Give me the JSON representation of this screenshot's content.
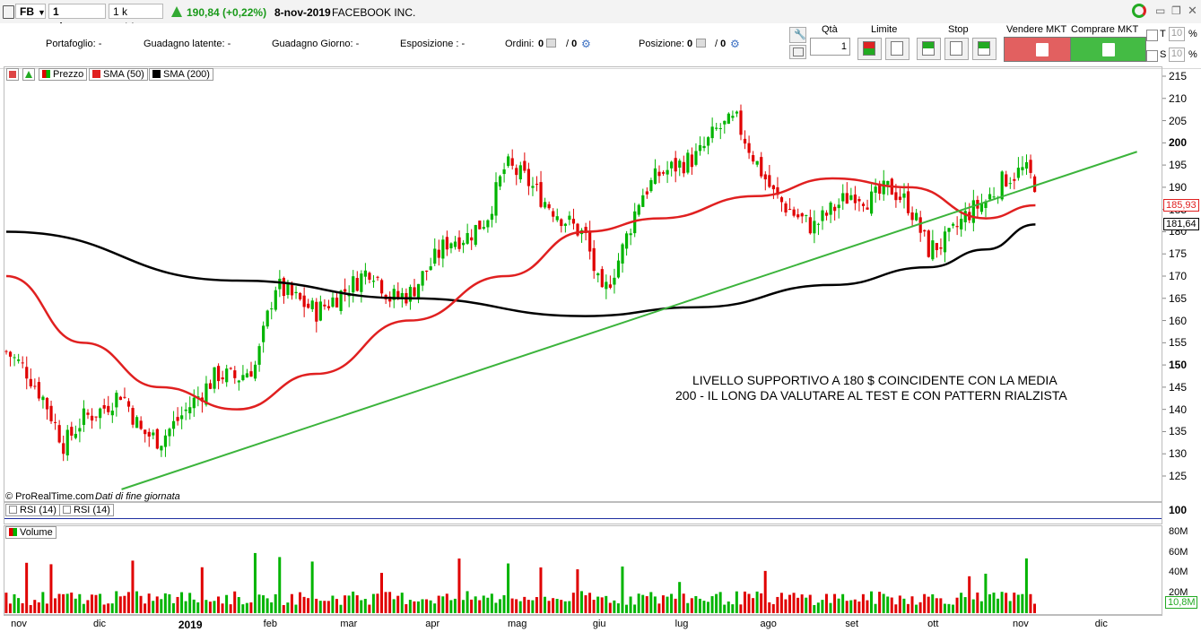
{
  "toolbar": {
    "symbol": "FB",
    "timeframe": "1 giorno",
    "units": "1 k unità",
    "price_change": "190,84 (+0,22%)",
    "date": "8-nov-2019",
    "company": "FACEBOOK INC."
  },
  "infobar": {
    "portafoglio": "Portafoglio: -",
    "guadagno_latente": "Guadagno latente: -",
    "guadagno_giorno": "Guadagno Giorno: -",
    "esposizione": "Esposizione : -",
    "ordini_label": "Ordini:",
    "ordini_val": "0",
    "ordini_val2": "0",
    "posizione_label": "Posizione:",
    "posizione_val": "0",
    "posizione_val2": "0",
    "qta_label": "Qtà",
    "qta_value": "1",
    "limite_label": "Limite",
    "stop_label": "Stop",
    "vendere_label": "Vendere MKT",
    "comprare_label": "Comprare MKT",
    "t_label": "T",
    "s_label": "S",
    "t_value": "10",
    "s_value": "10",
    "percent": "%"
  },
  "legend": {
    "prezzo": "Prezzo",
    "sma50": "SMA (50)",
    "sma200": "SMA (200)"
  },
  "colors": {
    "up": "#00b400",
    "down": "#e00000",
    "sma50": "#e02020",
    "sma200": "#000000",
    "trendline": "#3cb43c",
    "sell": "#e06060",
    "buy": "#44bb44"
  },
  "annotation": {
    "line1": "LIVELLO SUPPORTIVO A 180 $ COINCIDENTE CON LA MEDIA",
    "line2": "200 - IL LONG DA VALUTARE AL TEST E CON PATTERN RIALZISTA"
  },
  "credit": {
    "source": "© ProRealTime.com",
    "note": "Dati di fine giornata"
  },
  "rsi_panel": {
    "label1": "RSI (14)",
    "label2": "RSI (14)",
    "axis": "100"
  },
  "volume_panel": {
    "label": "Volume",
    "ticks": [
      "80M",
      "60M",
      "40M",
      "20M"
    ],
    "current": "10,8M"
  },
  "price_axis": {
    "ticks": [
      "215",
      "210",
      "205",
      "200",
      "195",
      "190",
      "185",
      "180",
      "175",
      "170",
      "165",
      "160",
      "155",
      "150",
      "145",
      "140",
      "135",
      "130",
      "125"
    ],
    "bold_ticks": [
      "200",
      "150"
    ],
    "sma50_label": "185,93",
    "sma200_label": "181,64"
  },
  "x_axis": {
    "labels": [
      "nov",
      "dic",
      "2019",
      "feb",
      "mar",
      "apr",
      "mag",
      "giu",
      "lug",
      "ago",
      "set",
      "ott",
      "nov",
      "dic"
    ]
  },
  "chart_data": {
    "type": "candlestick",
    "title": "FACEBOOK INC.",
    "ylim": [
      120,
      217
    ],
    "y_ticks": [
      215,
      210,
      205,
      200,
      195,
      190,
      185,
      180,
      175,
      170,
      165,
      160,
      155,
      150,
      145,
      140,
      135,
      130,
      125
    ],
    "x_months": [
      "nov",
      "dic",
      "2019",
      "feb",
      "mar",
      "apr",
      "mag",
      "giu",
      "lug",
      "ago",
      "set",
      "ott",
      "nov",
      "dic"
    ],
    "close_path": [
      [
        "2018-10-29",
        153
      ],
      [
        "2018-11-05",
        149
      ],
      [
        "2018-11-12",
        142
      ],
      [
        "2018-11-19",
        132
      ],
      [
        "2018-11-26",
        138
      ],
      [
        "2018-12-03",
        140
      ],
      [
        "2018-12-10",
        144
      ],
      [
        "2018-12-17",
        135
      ],
      [
        "2018-12-24",
        133
      ],
      [
        "2019-01-07",
        143
      ],
      [
        "2019-01-14",
        148
      ],
      [
        "2019-01-21",
        147
      ],
      [
        "2019-01-28",
        150
      ],
      [
        "2019-02-04",
        168
      ],
      [
        "2019-02-11",
        165
      ],
      [
        "2019-02-19",
        162
      ],
      [
        "2019-03-04",
        168
      ],
      [
        "2019-03-11",
        172
      ],
      [
        "2019-03-18",
        165
      ],
      [
        "2019-03-25",
        166
      ],
      [
        "2019-04-08",
        178
      ],
      [
        "2019-04-15",
        179
      ],
      [
        "2019-04-22",
        183
      ],
      [
        "2019-04-29",
        195
      ],
      [
        "2019-05-06",
        192
      ],
      [
        "2019-05-13",
        187
      ],
      [
        "2019-05-20",
        183
      ],
      [
        "2019-05-28",
        179
      ],
      [
        "2019-06-03",
        165
      ],
      [
        "2019-06-10",
        175
      ],
      [
        "2019-06-17",
        188
      ],
      [
        "2019-06-24",
        193
      ],
      [
        "2019-07-08",
        197
      ],
      [
        "2019-07-15",
        203
      ],
      [
        "2019-07-22",
        205
      ],
      [
        "2019-07-29",
        196
      ],
      [
        "2019-08-05",
        188
      ],
      [
        "2019-08-12",
        184
      ],
      [
        "2019-08-19",
        181
      ],
      [
        "2019-08-26",
        185
      ],
      [
        "2019-09-03",
        189
      ],
      [
        "2019-09-09",
        187
      ],
      [
        "2019-09-16",
        190
      ],
      [
        "2019-09-23",
        186
      ],
      [
        "2019-09-30",
        176
      ],
      [
        "2019-10-07",
        178
      ],
      [
        "2019-10-14",
        184
      ],
      [
        "2019-10-21",
        187
      ],
      [
        "2019-10-28",
        192
      ],
      [
        "2019-11-04",
        194
      ],
      [
        "2019-11-08",
        190.84
      ]
    ],
    "sma50_path": [
      [
        "2018-10-29",
        170
      ],
      [
        "2018-11-26",
        155
      ],
      [
        "2018-12-24",
        145
      ],
      [
        "2019-01-21",
        140
      ],
      [
        "2019-02-19",
        148
      ],
      [
        "2019-03-25",
        160
      ],
      [
        "2019-04-29",
        170
      ],
      [
        "2019-05-28",
        180
      ],
      [
        "2019-06-24",
        183
      ],
      [
        "2019-07-29",
        188
      ],
      [
        "2019-08-26",
        192
      ],
      [
        "2019-09-23",
        190
      ],
      [
        "2019-10-21",
        183
      ],
      [
        "2019-11-08",
        185.93
      ]
    ],
    "sma200_path": [
      [
        "2018-10-29",
        180
      ],
      [
        "2019-01-21",
        169
      ],
      [
        "2019-03-25",
        165
      ],
      [
        "2019-05-28",
        161
      ],
      [
        "2019-07-08",
        163
      ],
      [
        "2019-08-26",
        168
      ],
      [
        "2019-09-30",
        172
      ],
      [
        "2019-10-21",
        176
      ],
      [
        "2019-11-08",
        181.64
      ]
    ],
    "trendline": {
      "from": [
        "2018-12-10",
        122
      ],
      "to": [
        "2019-12-15",
        198
      ]
    },
    "volume": {
      "unit": "M",
      "max_label": "80M",
      "last": 10.8
    },
    "legend": [
      "Prezzo",
      "SMA (50)",
      "SMA (200)"
    ]
  }
}
